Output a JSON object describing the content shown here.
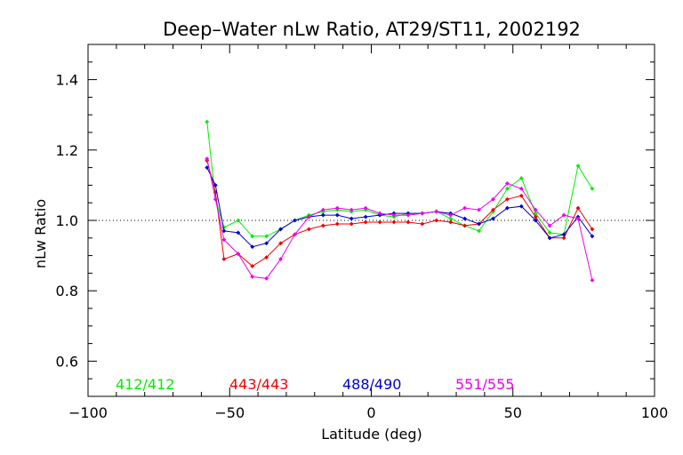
{
  "chart_data": {
    "type": "line",
    "title": "Deep–Water nLw Ratio, AT29/ST11, 2002192",
    "xlabel": "Latitude (deg)",
    "ylabel": "nLw Ratio",
    "xlim": [
      -100,
      100
    ],
    "ylim": [
      0.5,
      1.5
    ],
    "x_ticks": [
      "−100",
      "−50",
      "0",
      "50",
      "100"
    ],
    "y_ticks": [
      "0.6",
      "0.8",
      "1.0",
      "1.2",
      "1.4"
    ],
    "reference_line": 1.0,
    "grid": false,
    "legend_placement": "bottom",
    "series": [
      {
        "name": "412/412",
        "color": "#00ee00",
        "x": [
          -58,
          -55,
          -52,
          -47,
          -42,
          -37,
          -32,
          -27,
          -22,
          -17,
          -12,
          -7,
          -2,
          3,
          8,
          13,
          18,
          23,
          28,
          33,
          38,
          43,
          48,
          53,
          58,
          63,
          68,
          73,
          78
        ],
        "y": [
          1.28,
          1.06,
          0.98,
          1.0,
          0.955,
          0.955,
          0.975,
          1.0,
          1.015,
          1.025,
          1.03,
          1.025,
          1.03,
          1.015,
          1.01,
          1.02,
          1.02,
          1.025,
          1.005,
          0.985,
          0.97,
          1.025,
          1.09,
          1.12,
          1.02,
          0.965,
          0.96,
          1.155,
          1.09
        ]
      },
      {
        "name": "443/443",
        "color": "#ee0000",
        "x": [
          -58,
          -55,
          -52,
          -47,
          -42,
          -37,
          -32,
          -27,
          -22,
          -17,
          -12,
          -7,
          -2,
          3,
          8,
          13,
          18,
          23,
          28,
          33,
          38,
          43,
          48,
          53,
          58,
          63,
          68,
          73,
          78
        ],
        "y": [
          1.17,
          1.08,
          0.89,
          0.905,
          0.87,
          0.895,
          0.935,
          0.96,
          0.975,
          0.985,
          0.99,
          0.99,
          0.995,
          0.995,
          0.995,
          0.995,
          0.99,
          1.0,
          0.995,
          0.985,
          0.99,
          1.03,
          1.06,
          1.07,
          1.01,
          0.95,
          0.95,
          1.035,
          0.975
        ]
      },
      {
        "name": "488/490",
        "color": "#0000cc",
        "x": [
          -58,
          -55,
          -52,
          -47,
          -42,
          -37,
          -32,
          -27,
          -22,
          -17,
          -12,
          -7,
          -2,
          3,
          8,
          13,
          18,
          23,
          28,
          33,
          38,
          43,
          48,
          53,
          58,
          63,
          68,
          73,
          78
        ],
        "y": [
          1.15,
          1.1,
          0.97,
          0.965,
          0.925,
          0.935,
          0.975,
          1.0,
          1.01,
          1.015,
          1.015,
          1.005,
          1.01,
          1.015,
          1.02,
          1.02,
          1.02,
          1.025,
          1.02,
          1.005,
          0.99,
          1.005,
          1.035,
          1.04,
          1.0,
          0.95,
          0.96,
          1.01,
          0.955
        ]
      },
      {
        "name": "551/555",
        "color": "#ee00ee",
        "x": [
          -58,
          -55,
          -52,
          -47,
          -42,
          -37,
          -32,
          -27,
          -22,
          -17,
          -12,
          -7,
          -2,
          3,
          8,
          13,
          18,
          23,
          28,
          33,
          38,
          43,
          48,
          53,
          58,
          63,
          68,
          73,
          78
        ],
        "y": [
          1.175,
          1.06,
          0.945,
          0.905,
          0.84,
          0.835,
          0.89,
          0.96,
          1.01,
          1.03,
          1.035,
          1.03,
          1.035,
          1.02,
          1.015,
          1.015,
          1.02,
          1.025,
          1.015,
          1.035,
          1.03,
          1.06,
          1.105,
          1.09,
          1.03,
          0.985,
          1.015,
          1.005,
          0.83
        ]
      }
    ]
  }
}
